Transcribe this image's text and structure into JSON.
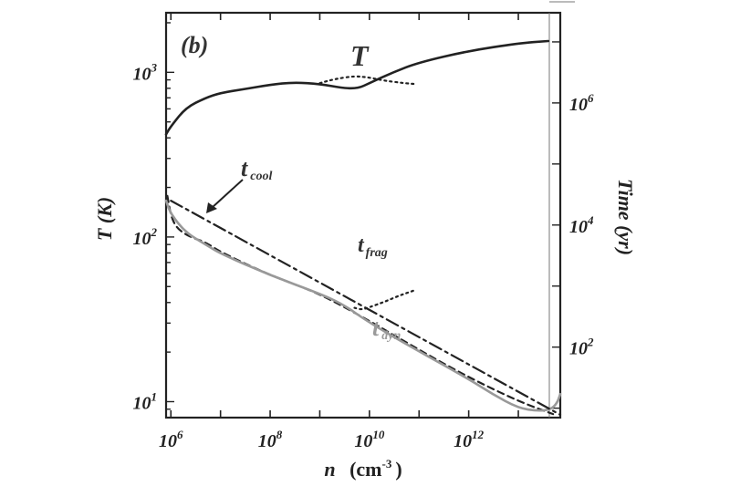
{
  "chart_data": {
    "type": "line",
    "panel_label": "(b)",
    "xlabel": "n",
    "xlabel_unit": "(cm",
    "xlabel_unit_exp": "-3",
    "xlabel_unit_close": ")",
    "ylabel_left": "T (K)",
    "ylabel_right": "Time (yr)",
    "x_scale": "log",
    "y_left_scale": "log",
    "y_right_scale": "log",
    "xlim": [
      800000,
      70000000000000
    ],
    "ylim_left": [
      8,
      2300
    ],
    "ylim_right": [
      7,
      30000000
    ],
    "grid": false,
    "x_ticks": [
      {
        "value": 1000000,
        "base": "10",
        "exp": "6"
      },
      {
        "value": 100000000,
        "base": "10",
        "exp": "8"
      },
      {
        "value": 10000000000,
        "base": "10",
        "exp": "10"
      },
      {
        "value": 1000000000000,
        "base": "10",
        "exp": "12"
      }
    ],
    "y_left_ticks": [
      {
        "value": 10,
        "base": "10",
        "exp": "1"
      },
      {
        "value": 100,
        "base": "10",
        "exp": "2"
      },
      {
        "value": 1000,
        "base": "10",
        "exp": "3"
      }
    ],
    "y_right_ticks": [
      {
        "value": 100,
        "base": "10",
        "exp": "2"
      },
      {
        "value": 10000,
        "base": "10",
        "exp": "4"
      },
      {
        "value": 1000000,
        "base": "10",
        "exp": "6"
      }
    ],
    "annotations": {
      "T": "T",
      "t_cool": {
        "main": "t",
        "sub": "cool"
      },
      "t_frag": {
        "main": "t",
        "sub": "frag"
      },
      "t_dyn": {
        "main": "t",
        "sub": "dyn"
      }
    },
    "series": [
      {
        "name": "T",
        "axis": "left",
        "style": "solid",
        "color": "#222222",
        "x": [
          800000,
          1000000,
          2000000,
          5000000,
          10000000,
          30000000,
          100000000,
          300000000,
          1000000000,
          3000000000,
          6000000000,
          10000000000,
          30000000000,
          100000000000,
          1000000000000,
          10000000000000,
          40000000000000
        ],
        "y": [
          420,
          470,
          610,
          700,
          750,
          790,
          840,
          870,
          850,
          800,
          800,
          860,
          1000,
          1150,
          1350,
          1500,
          1550
        ]
      },
      {
        "name": "T",
        "axis": "left",
        "style": "dotted",
        "color": "#222222",
        "x": [
          1000000000,
          2000000000,
          5000000000,
          10000000000,
          20000000000,
          50000000000,
          80000000000
        ],
        "y": [
          860,
          910,
          950,
          930,
          890,
          860,
          850
        ]
      },
      {
        "name": "t_frag",
        "axis": "right",
        "style": "dotted",
        "color": "#222222",
        "x": [
          5000000000,
          7000000000,
          10000000000,
          20000000000,
          40000000000,
          80000000000
        ],
        "y": [
          440,
          410,
          450,
          550,
          700,
          850
        ]
      },
      {
        "name": "t_cool",
        "axis": "right",
        "style": "dashed",
        "color": "#222222",
        "x": [
          850000,
          1000000,
          1300000,
          2000000,
          3000000,
          5000000,
          10000000,
          100000000,
          1000000000,
          10000000000,
          100000000000,
          1000000000000,
          10000000000000,
          50000000000000
        ],
        "y": [
          30000,
          14000,
          9000,
          7000,
          6000,
          5200,
          3600,
          1500,
          750,
          270,
          90,
          32,
          13,
          8
        ]
      },
      {
        "name": "t_dyn",
        "axis": "right",
        "style": "solid",
        "color": "#999999",
        "x": [
          800000,
          1000000,
          2000000,
          5000000,
          10000000,
          100000000,
          1000000000,
          3000000000,
          10000000000,
          100000000000,
          1000000000000,
          3000000000000,
          10000000000000,
          25000000000000,
          45000000000000,
          60000000000000,
          70000000000000
        ],
        "y": [
          25000,
          15000,
          7500,
          4800,
          3400,
          1500,
          750,
          500,
          250,
          85,
          30,
          17,
          10,
          9,
          9.5,
          12,
          17
        ]
      },
      {
        "name": "dash-dot",
        "axis": "right",
        "style": "dashdot",
        "color": "#222222",
        "x": [
          1000000,
          70000000000000
        ],
        "y": [
          25000,
          7.8
        ]
      }
    ]
  }
}
